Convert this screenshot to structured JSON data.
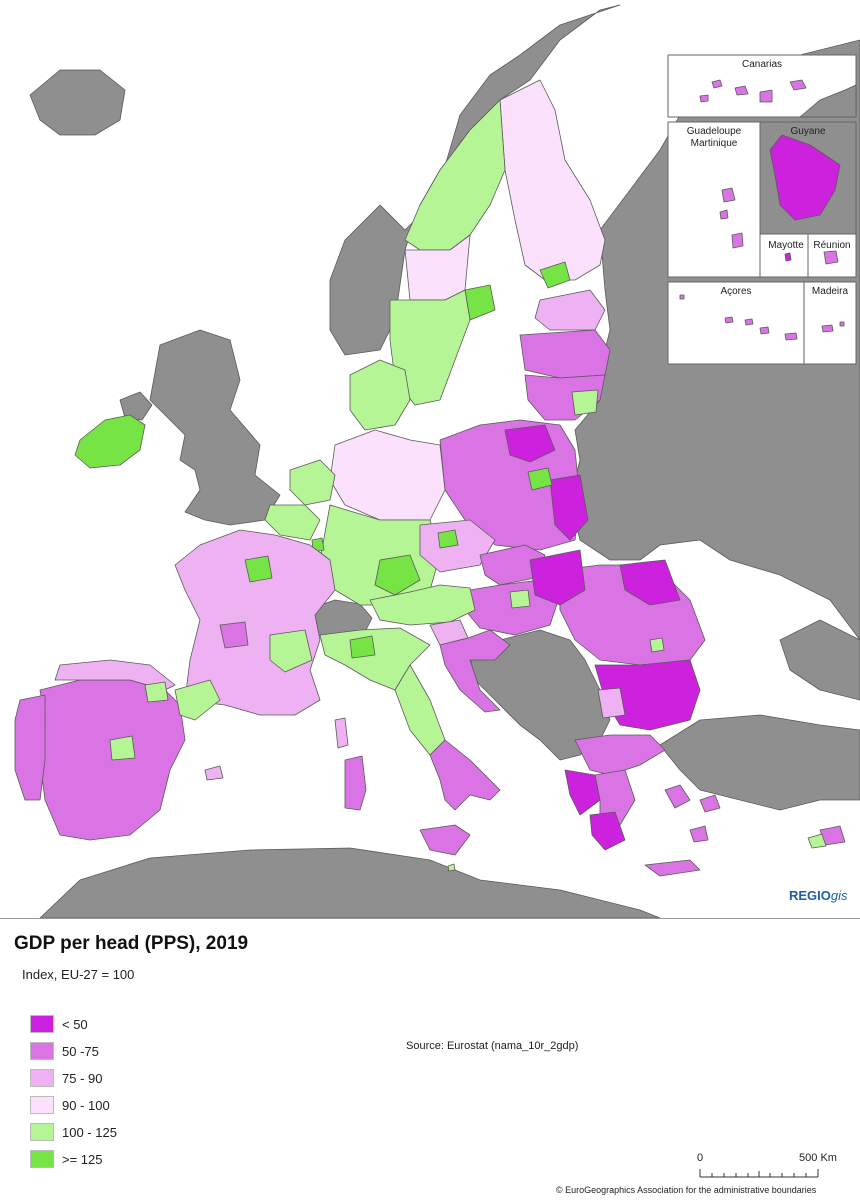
{
  "map": {
    "brand": {
      "main": "REGIO",
      "suffix": "gis"
    },
    "colors": {
      "sea": "#ffffff",
      "non_eu_land": "#8f8f8f",
      "border": "#5a5a5a",
      "lt50": "#cc22dd",
      "50_75": "#da74e4",
      "75_90": "#eeb2f2",
      "90_100": "#fbe1fb",
      "100_125": "#b6f596",
      "ge125": "#77e446"
    },
    "insets": {
      "canarias": "Canarias",
      "guadeloupe": "Guadeloupe",
      "martinique": "Martinique",
      "guyane": "Guyane",
      "mayotte": "Mayotte",
      "reunion": "Réunion",
      "acores": "Açores",
      "madeira": "Madeira"
    }
  },
  "legend": {
    "title": "GDP per head (PPS), 2019",
    "subtitle": "Index, EU-27 = 100",
    "classes": [
      {
        "label": "< 50",
        "color": "#cc22dd"
      },
      {
        "label": "50 -75",
        "color": "#da74e4"
      },
      {
        "label": "75 - 90",
        "color": "#eeb2f2"
      },
      {
        "label": "90 - 100",
        "color": "#fbe1fb"
      },
      {
        "label": "100 - 125",
        "color": "#b6f596"
      },
      {
        "label": ">= 125",
        "color": "#77e446"
      }
    ],
    "source": "Source: Eurostat (nama_10r_2gdp)",
    "scale": {
      "start": "0",
      "end": "500 Km"
    },
    "copyright": "© EuroGeographics Association for the administrative boundaries"
  }
}
